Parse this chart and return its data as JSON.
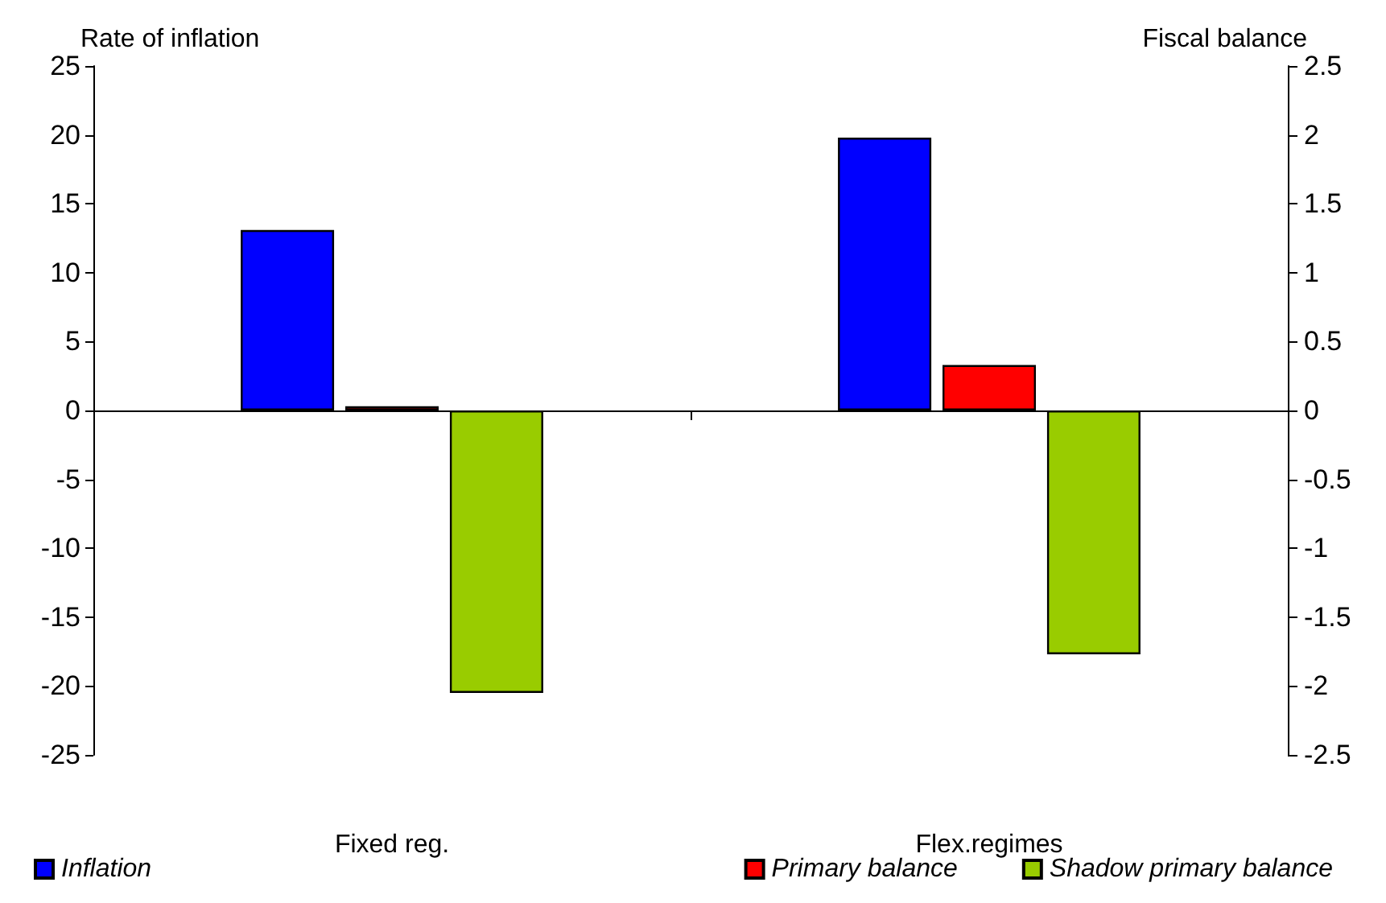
{
  "chart_data": {
    "type": "bar",
    "categories": [
      "Fixed reg.",
      "Flex.regimes"
    ],
    "ylabel": "Rate of inflation",
    "y2label": "Fiscal balance",
    "ylim": [
      -25,
      25
    ],
    "yticks": [
      -25,
      -20,
      -15,
      -10,
      -5,
      0,
      5,
      10,
      15,
      20,
      25
    ],
    "y2lim": [
      -2.5,
      2.5
    ],
    "y2ticks": [
      -2.5,
      -2,
      -1.5,
      -1,
      -0.5,
      0,
      0.5,
      1,
      1.5,
      2,
      2.5
    ],
    "series": [
      {
        "name": "Inflation",
        "color": "#0000ff",
        "values": [
          13.1,
          19.8
        ]
      },
      {
        "name": "Primary balance",
        "color": "#ff0000",
        "values": [
          0.03,
          0.33
        ],
        "axis": "y2"
      },
      {
        "name": "Shadow primary balance",
        "color": "#99cc00",
        "values": [
          -2.05,
          -1.77
        ],
        "axis": "y2"
      }
    ],
    "legend": "bottom"
  }
}
